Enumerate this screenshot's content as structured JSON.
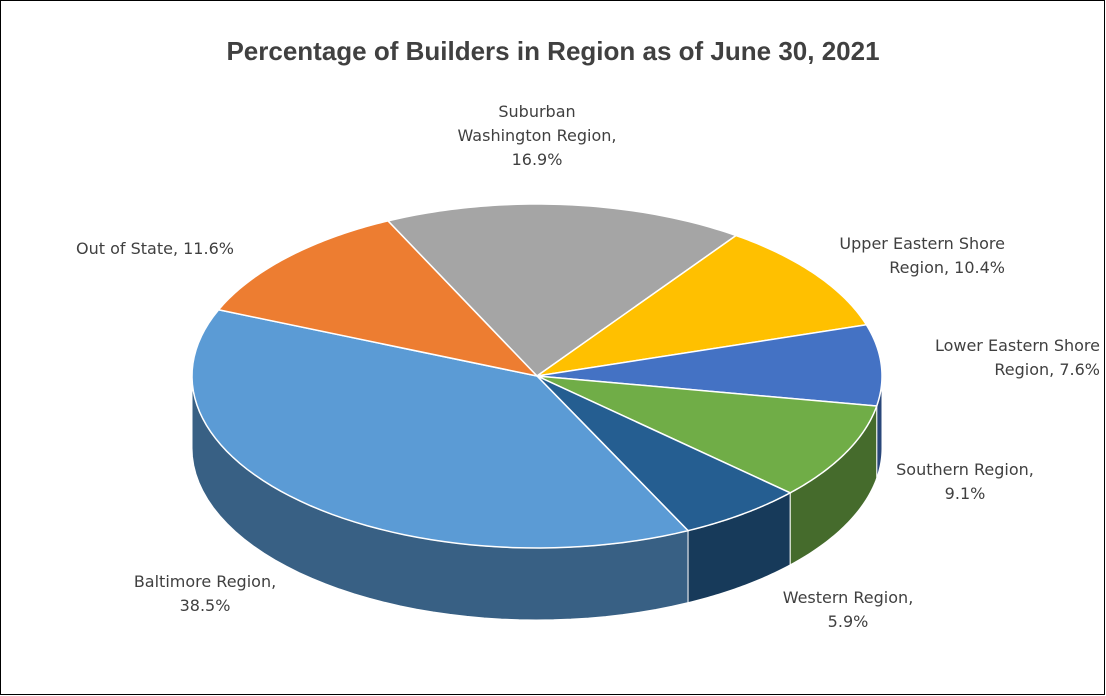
{
  "chart_data": {
    "type": "pie3d",
    "title": "Percentage of Builders in Region as of June 30, 2021",
    "categories": [
      "Suburban Washington Region",
      "Upper Eastern Shore Region",
      "Lower Eastern Shore Region",
      "Southern Region",
      "Western Region",
      "Baltimore Region",
      "Out of State"
    ],
    "values": [
      16.9,
      10.4,
      7.6,
      9.1,
      5.9,
      38.5,
      11.6
    ],
    "value_labels": [
      "16.9%",
      "10.4%",
      "7.6%",
      "9.1%",
      "5.9%",
      "38.5%",
      "11.6%"
    ],
    "label_separator": ", ",
    "colors": [
      "#a5a5a5",
      "#ffc000",
      "#4472c4",
      "#70ad47",
      "#255e91",
      "#5b9bd5",
      "#ed7d31"
    ]
  }
}
